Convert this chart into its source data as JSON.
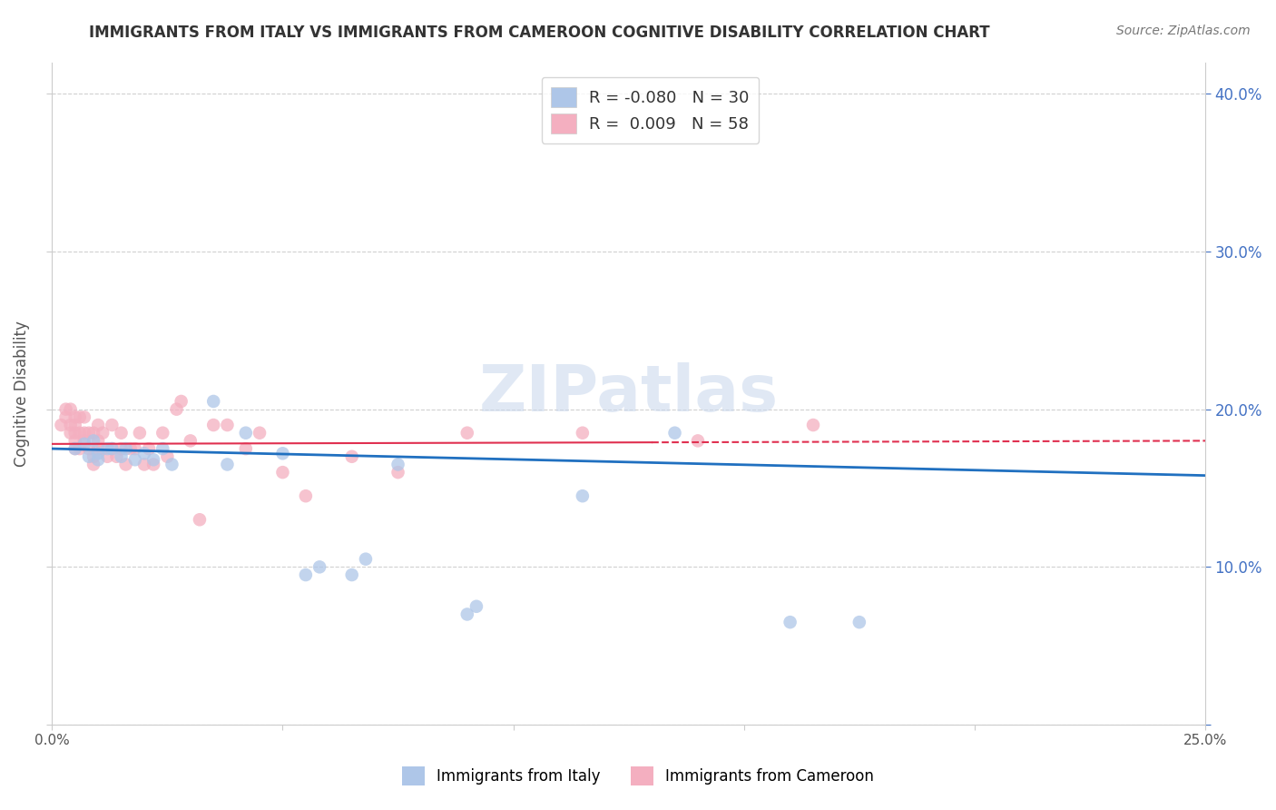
{
  "title": "IMMIGRANTS FROM ITALY VS IMMIGRANTS FROM CAMEROON COGNITIVE DISABILITY CORRELATION CHART",
  "source": "Source: ZipAtlas.com",
  "ylabel": "Cognitive Disability",
  "xlim": [
    0.0,
    0.25
  ],
  "ylim": [
    0.0,
    0.42
  ],
  "xticks": [
    0.0,
    0.05,
    0.1,
    0.15,
    0.2,
    0.25
  ],
  "yticks": [
    0.0,
    0.1,
    0.2,
    0.3,
    0.4
  ],
  "right_ytick_labels": [
    "",
    "10.0%",
    "20.0%",
    "30.0%",
    "40.0%"
  ],
  "xtick_labels": [
    "0.0%",
    "",
    "",
    "",
    "",
    "25.0%"
  ],
  "italy_R": -0.08,
  "italy_N": 30,
  "cameroon_R": 0.009,
  "cameroon_N": 58,
  "italy_color": "#aec6e8",
  "cameroon_color": "#f4afc0",
  "italy_line_color": "#2070c0",
  "cameroon_line_color": "#e03050",
  "watermark": "ZIPatlas",
  "italy_x": [
    0.005,
    0.007,
    0.008,
    0.009,
    0.01,
    0.01,
    0.012,
    0.013,
    0.015,
    0.016,
    0.018,
    0.02,
    0.022,
    0.024,
    0.026,
    0.035,
    0.038,
    0.042,
    0.05,
    0.055,
    0.058,
    0.065,
    0.068,
    0.075,
    0.09,
    0.092,
    0.115,
    0.135,
    0.16,
    0.175
  ],
  "italy_y": [
    0.175,
    0.178,
    0.17,
    0.18,
    0.172,
    0.168,
    0.175,
    0.175,
    0.17,
    0.175,
    0.168,
    0.172,
    0.168,
    0.175,
    0.165,
    0.205,
    0.165,
    0.185,
    0.172,
    0.095,
    0.1,
    0.095,
    0.105,
    0.165,
    0.07,
    0.075,
    0.145,
    0.185,
    0.065,
    0.065
  ],
  "cameroon_x": [
    0.002,
    0.003,
    0.003,
    0.004,
    0.004,
    0.004,
    0.005,
    0.005,
    0.005,
    0.005,
    0.005,
    0.006,
    0.006,
    0.006,
    0.007,
    0.007,
    0.007,
    0.008,
    0.008,
    0.009,
    0.009,
    0.009,
    0.01,
    0.01,
    0.01,
    0.011,
    0.011,
    0.012,
    0.013,
    0.013,
    0.014,
    0.015,
    0.015,
    0.016,
    0.017,
    0.018,
    0.019,
    0.02,
    0.021,
    0.022,
    0.024,
    0.025,
    0.027,
    0.028,
    0.03,
    0.032,
    0.035,
    0.038,
    0.042,
    0.045,
    0.05,
    0.055,
    0.065,
    0.075,
    0.09,
    0.115,
    0.14,
    0.165
  ],
  "cameroon_y": [
    0.19,
    0.195,
    0.2,
    0.185,
    0.19,
    0.2,
    0.175,
    0.18,
    0.185,
    0.19,
    0.195,
    0.175,
    0.185,
    0.195,
    0.18,
    0.185,
    0.195,
    0.175,
    0.185,
    0.165,
    0.17,
    0.185,
    0.175,
    0.18,
    0.19,
    0.175,
    0.185,
    0.17,
    0.175,
    0.19,
    0.17,
    0.175,
    0.185,
    0.165,
    0.175,
    0.175,
    0.185,
    0.165,
    0.175,
    0.165,
    0.185,
    0.17,
    0.2,
    0.205,
    0.18,
    0.13,
    0.19,
    0.19,
    0.175,
    0.185,
    0.16,
    0.145,
    0.17,
    0.16,
    0.185,
    0.185,
    0.18,
    0.19
  ],
  "italy_line_x0": 0.0,
  "italy_line_y0": 0.175,
  "italy_line_x1": 0.25,
  "italy_line_y1": 0.158,
  "cam_line_x0": 0.0,
  "cam_line_y0": 0.178,
  "cam_line_x1": 0.25,
  "cam_line_y1": 0.18
}
